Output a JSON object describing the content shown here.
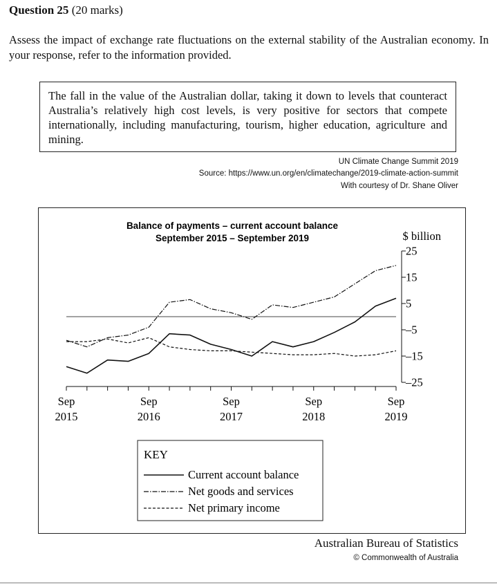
{
  "question": {
    "number_label": "Question 25",
    "marks_label": "(20 marks)",
    "prompt": "Assess the impact of exchange rate fluctuations on the external stability of the Australian economy. In your response, refer to the information provided."
  },
  "quote": {
    "text": "The fall in the value of the Australian dollar, taking it down to levels that counteract Australia’s relatively high cost levels, is very positive for sectors that compete internationally, including manufacturing, tourism, higher education, agriculture and mining.",
    "source_line1": "UN Climate Change Summit 2019",
    "source_line2": "Source: https://www.un.org/en/climatechange/2019-climate-action-summit",
    "source_line3": "With courtesy of Dr. Shane Oliver"
  },
  "chart_data": {
    "type": "line",
    "title": "Balance of payments – current account balance",
    "subtitle": "September 2015 – September 2019",
    "ylabel": "$ billion",
    "ylim": [
      -25,
      25
    ],
    "yticks": [
      "25",
      "15",
      "5",
      "–5",
      "–15",
      "–25"
    ],
    "ytick_values": [
      25,
      15,
      5,
      -5,
      -15,
      -25
    ],
    "x": [
      2015.75,
      2016.0,
      2016.25,
      2016.5,
      2016.75,
      2017.0,
      2017.25,
      2017.5,
      2017.75,
      2018.0,
      2018.25,
      2018.5,
      2018.75,
      2019.0,
      2019.25,
      2019.5,
      2019.75
    ],
    "xlim": [
      2015.75,
      2019.75
    ],
    "xticks": [
      {
        "value": 2015.75,
        "month": "Sep",
        "year": "2015"
      },
      {
        "value": 2016.75,
        "month": "Sep",
        "year": "2016"
      },
      {
        "value": 2017.75,
        "month": "Sep",
        "year": "2017"
      },
      {
        "value": 2018.75,
        "month": "Sep",
        "year": "2018"
      },
      {
        "value": 2019.75,
        "month": "Sep",
        "year": "2019"
      }
    ],
    "zero_line": 0,
    "series": [
      {
        "name": "Current account balance",
        "style": "solid",
        "values": [
          -19,
          -21.5,
          -16.5,
          -17,
          -14,
          -6.5,
          -7,
          -10.5,
          -12.5,
          -15,
          -9.5,
          -11.5,
          -9.5,
          -6,
          -2,
          4,
          7
        ]
      },
      {
        "name": "Net goods and services",
        "style": "dashdot",
        "values": [
          -9,
          -11.5,
          -8,
          -7,
          -4,
          5.5,
          6.5,
          3,
          1.5,
          -1,
          4.5,
          3.5,
          5.5,
          7.5,
          12.5,
          17.5,
          19.5
        ]
      },
      {
        "name": "Net primary income",
        "style": "dashed",
        "values": [
          -9.5,
          -9.5,
          -8.5,
          -10,
          -8,
          -11.5,
          -12.5,
          -13,
          -13,
          -13.5,
          -14,
          -14.5,
          -14.5,
          -14,
          -15,
          -14.5,
          -13
        ]
      }
    ],
    "legend_title": "KEY",
    "legend_position": "bottom"
  },
  "credit": {
    "publisher": "Australian Bureau of Statistics",
    "copyright": "© Commonwealth of Australia"
  }
}
